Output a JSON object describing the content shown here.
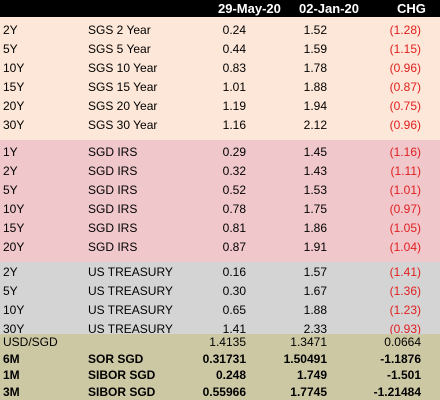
{
  "header": {
    "date1": "29-May-20",
    "date2": "02-Jan-20",
    "chg": "CHG"
  },
  "sgs": [
    {
      "tenor": "2Y",
      "name": "SGS 2 Year",
      "d1": "0.24",
      "d2": "1.52",
      "chg": "(1.28)"
    },
    {
      "tenor": "5Y",
      "name": "SGS 5 Year",
      "d1": "0.44",
      "d2": "1.59",
      "chg": "(1.15)"
    },
    {
      "tenor": "10Y",
      "name": "SGS 10 Year",
      "d1": "0.83",
      "d2": "1.78",
      "chg": "(0.96)"
    },
    {
      "tenor": "15Y",
      "name": "SGS 15 Year",
      "d1": "1.01",
      "d2": "1.88",
      "chg": "(0.87)"
    },
    {
      "tenor": "20Y",
      "name": "SGS 20 Year",
      "d1": "1.19",
      "d2": "1.94",
      "chg": "(0.75)"
    },
    {
      "tenor": "30Y",
      "name": "SGS 30 Year",
      "d1": "1.16",
      "d2": "2.12",
      "chg": "(0.96)"
    }
  ],
  "irs": [
    {
      "tenor": "1Y",
      "name": "SGD IRS",
      "d1": "0.29",
      "d2": "1.45",
      "chg": "(1.16)"
    },
    {
      "tenor": "2Y",
      "name": "SGD IRS",
      "d1": "0.32",
      "d2": "1.43",
      "chg": "(1.11)"
    },
    {
      "tenor": "5Y",
      "name": "SGD IRS",
      "d1": "0.52",
      "d2": "1.53",
      "chg": "(1.01)"
    },
    {
      "tenor": "10Y",
      "name": "SGD IRS",
      "d1": "0.78",
      "d2": "1.75",
      "chg": "(0.97)"
    },
    {
      "tenor": "15Y",
      "name": "SGD IRS",
      "d1": "0.81",
      "d2": "1.86",
      "chg": "(1.05)"
    },
    {
      "tenor": "20Y",
      "name": "SGD IRS",
      "d1": "0.87",
      "d2": "1.91",
      "chg": "(1.04)"
    }
  ],
  "ust": [
    {
      "tenor": "2Y",
      "name": "US TREASURY",
      "d1": "0.16",
      "d2": "1.57",
      "chg": "(1.41)"
    },
    {
      "tenor": "5Y",
      "name": "US TREASURY",
      "d1": "0.30",
      "d2": "1.67",
      "chg": "(1.36)"
    },
    {
      "tenor": "10Y",
      "name": "US TREASURY",
      "d1": "0.65",
      "d2": "1.88",
      "chg": "(1.23)"
    },
    {
      "tenor": "30Y",
      "name": "US TREASURY",
      "d1": "1.41",
      "d2": "2.33",
      "chg": "(0.93)"
    }
  ],
  "fx": [
    {
      "tenor": "USD/SGD",
      "name": "",
      "d1": "1.4135",
      "d2": "1.3471",
      "chg": "0.0664"
    },
    {
      "tenor": "6M",
      "name": "SOR SGD",
      "d1": "0.31731",
      "d2": "1.50491",
      "chg": "-1.1876"
    },
    {
      "tenor": "1M",
      "name": "SIBOR SGD",
      "d1": "0.248",
      "d2": "1.749",
      "chg": "-1.501"
    },
    {
      "tenor": "3M",
      "name": "SIBOR SGD",
      "d1": "0.55966",
      "d2": "1.7745",
      "chg": "-1.21484"
    }
  ]
}
